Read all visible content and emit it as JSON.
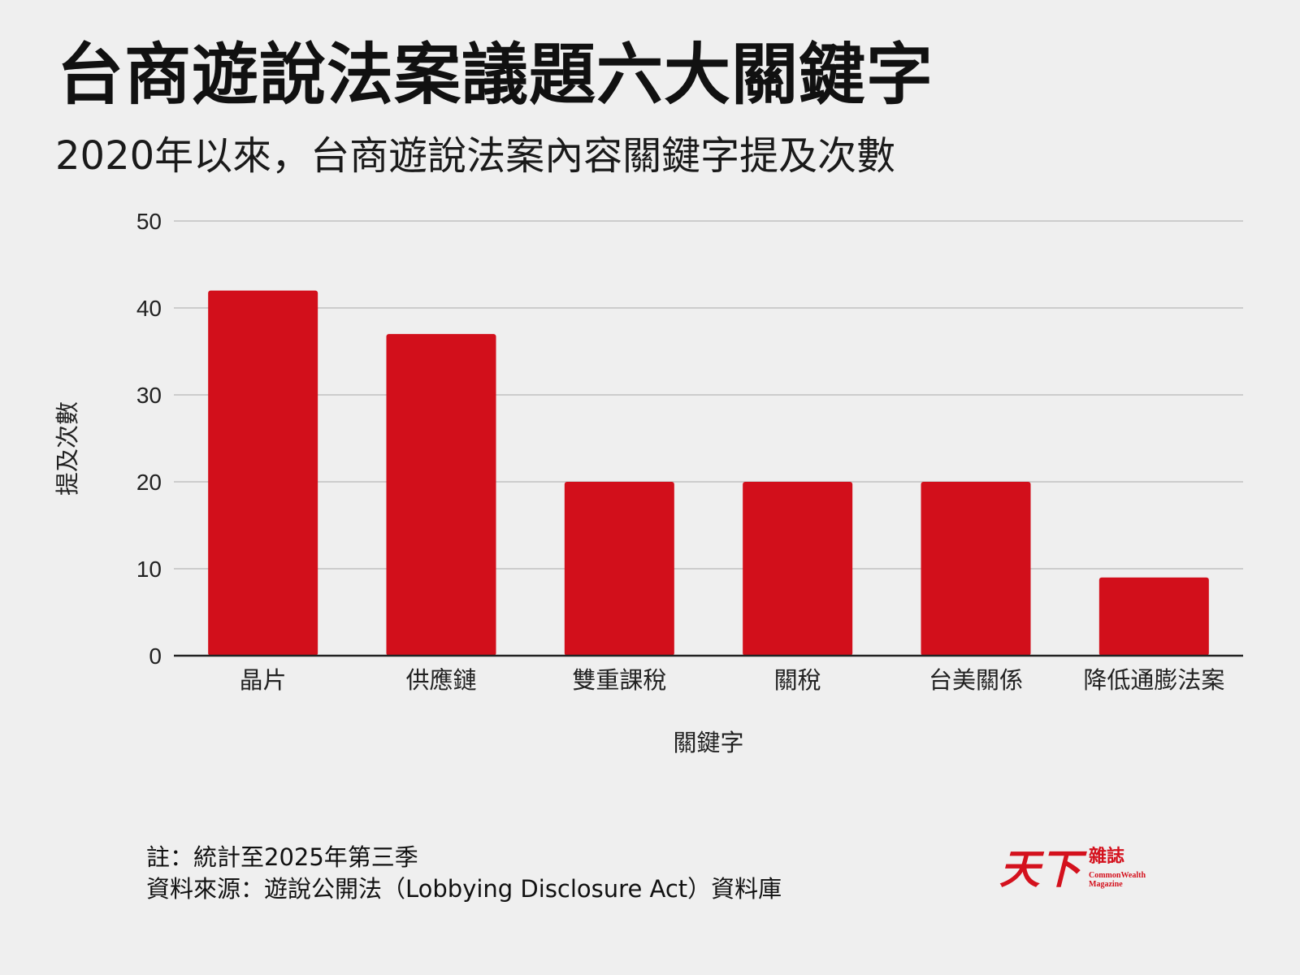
{
  "title": "台商遊說法案議題六大關鍵字",
  "subtitle": "2020年以來，台商遊說法案內容關鍵字提及次數",
  "colors": {
    "bar": "#d20f1b",
    "grid": "#cccccc",
    "axis": "#222222"
  },
  "chart_data": {
    "type": "bar",
    "categories": [
      "晶片",
      "供應鏈",
      "雙重課稅",
      "關稅",
      "台美關係",
      "降低通膨法案"
    ],
    "values": [
      42,
      37,
      20,
      20,
      20,
      9
    ],
    "xlabel": "關鍵字",
    "ylabel": "提及次數",
    "ylim": [
      0,
      50
    ],
    "yticks": [
      0,
      10,
      20,
      30,
      40,
      50
    ],
    "grid": true,
    "legend": "none"
  },
  "notes": {
    "line1": "註：統計至2025年第三季",
    "line2": "資料來源：遊說公開法（Lobbying Disclosure Act）資料庫"
  },
  "logo": {
    "main": "天下",
    "sub": "雜誌",
    "en_line1": "CommonWealth",
    "en_line2": "Magazine"
  }
}
